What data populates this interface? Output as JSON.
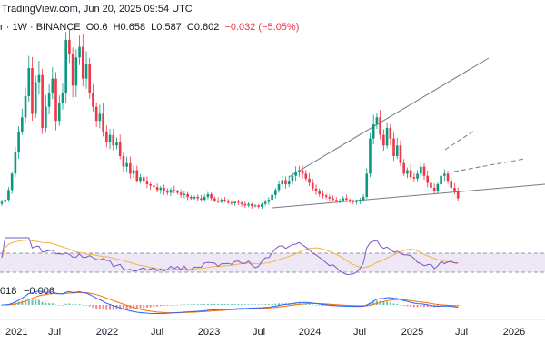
{
  "header": {
    "source_line": "TradingView.com, Jun 20, 2025 09:54 UTC",
    "symbol_line": "r · 1W · BINANCE",
    "open_label": "O0.6",
    "high_label": "H0.658",
    "low_label": "L0.587",
    "close_label": "C0.602",
    "change_label": "−0.032 (−5.05%)"
  },
  "macd_label": "018",
  "macd_value_label": "−0.006",
  "colors": {
    "up": "#089981",
    "down": "#f23645",
    "rsi_line": "#7e57c2",
    "rsi_ma": "#f5b342",
    "rsi_band": "#ede7f6",
    "macd_line": "#2962ff",
    "macd_signal": "#ff6d00",
    "trendline": "#787b86",
    "axis_text": "#131722",
    "header_text": "#131722",
    "change_text": "#f23645"
  },
  "chart_data": {
    "type": "candlestick",
    "timeframe": "1W",
    "x_ticks": [
      "2021",
      "Jul",
      "2022",
      "Jul",
      "2023",
      "Jul",
      "2024",
      "Jul",
      "2025",
      "Jul",
      "2026"
    ],
    "price_range": [
      0.35,
      2.9
    ],
    "last_candle": {
      "open": 0.6,
      "high": 0.658,
      "low": 0.587,
      "close": 0.602,
      "change": -0.032,
      "change_pct": -5.05
    },
    "price_path": [
      0.55,
      0.58,
      0.72,
      0.95,
      1.25,
      1.55,
      1.75,
      2.05,
      2.45,
      1.8,
      2.25,
      2.35,
      1.6,
      1.9,
      2.1,
      2.3,
      1.7,
      1.95,
      2.1,
      2.85,
      2.65,
      2.2,
      2.6,
      2.75,
      2.3,
      2.5,
      2.1,
      1.9,
      1.7,
      1.8,
      1.55,
      1.4,
      1.5,
      1.35,
      1.4,
      1.2,
      1.05,
      1.1,
      0.95,
      1.0,
      0.85,
      0.9,
      0.85,
      0.8,
      0.78,
      0.76,
      0.72,
      0.75,
      0.7,
      0.68,
      0.72,
      0.7,
      0.68,
      0.65,
      0.66,
      0.62,
      0.6,
      0.62,
      0.6,
      0.58,
      0.62,
      0.66,
      0.6,
      0.57,
      0.55,
      0.58,
      0.56,
      0.54,
      0.53,
      0.55,
      0.54,
      0.52,
      0.5,
      0.52,
      0.49,
      0.5,
      0.48,
      0.52,
      0.55,
      0.58,
      0.65,
      0.72,
      0.8,
      0.86,
      0.8,
      0.85,
      0.92,
      0.98,
      1.0,
      0.95,
      0.88,
      0.82,
      0.74,
      0.7,
      0.66,
      0.64,
      0.62,
      0.6,
      0.58,
      0.56,
      0.57,
      0.6,
      0.58,
      0.56,
      0.55,
      0.56,
      0.58,
      0.62,
      0.95,
      1.45,
      1.65,
      1.75,
      1.5,
      1.35,
      1.6,
      1.45,
      1.2,
      1.35,
      1.1,
      0.95,
      1.0,
      0.9,
      0.88,
      0.95,
      1.05,
      0.92,
      0.82,
      0.75,
      0.7,
      0.8,
      0.92,
      0.95,
      0.85,
      0.75,
      0.7,
      0.6
    ],
    "trendlines": [
      {
        "name": "support",
        "style": "solid",
        "from": "2023-08",
        "to": "2026-10"
      },
      {
        "name": "resistance",
        "style": "solid",
        "from": "2023-10",
        "to": "2025-11"
      },
      {
        "name": "projection_upper",
        "style": "dashed",
        "from": "2025-06",
        "to": "2025-09"
      },
      {
        "name": "projection_lower",
        "style": "dashed",
        "from": "2025-06",
        "to": "2026-01"
      }
    ],
    "rsi": {
      "upper_band": 70,
      "lower_band": 30
    },
    "macd": {
      "histogram": true,
      "lines": [
        "macd",
        "signal"
      ]
    }
  }
}
